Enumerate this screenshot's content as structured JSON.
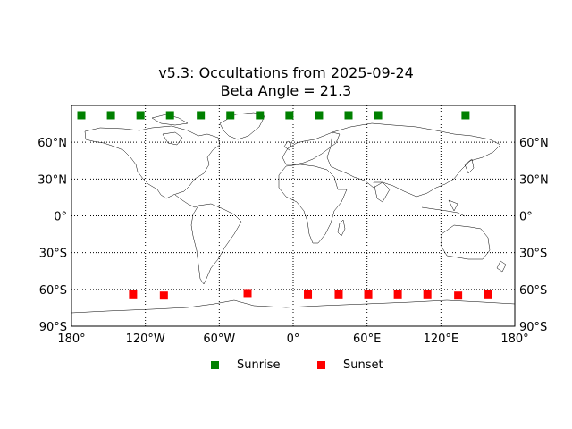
{
  "title": {
    "line1": "v5.3: Occultations from 2025-09-24",
    "line2": "Beta Angle = 21.3"
  },
  "colors": {
    "sunrise": "#008000",
    "sunset": "#ff0000"
  },
  "chart_data": {
    "type": "scatter",
    "projection": "equirectangular",
    "xlim": [
      -180,
      180
    ],
    "ylim": [
      -90,
      90
    ],
    "grid": true,
    "x_ticks": [
      {
        "value": -180,
        "label": "180°"
      },
      {
        "value": -120,
        "label": "120°W"
      },
      {
        "value": -60,
        "label": "60°W"
      },
      {
        "value": 0,
        "label": "0°"
      },
      {
        "value": 60,
        "label": "60°E"
      },
      {
        "value": 120,
        "label": "120°E"
      },
      {
        "value": 180,
        "label": "180°"
      }
    ],
    "y_ticks": [
      {
        "value": 60,
        "label": "60°N"
      },
      {
        "value": 30,
        "label": "30°N"
      },
      {
        "value": 0,
        "label": "0°"
      },
      {
        "value": -30,
        "label": "30°S"
      },
      {
        "value": -60,
        "label": "60°S"
      },
      {
        "value": -90,
        "label": "90°S"
      }
    ],
    "legend_position": "bottom-center",
    "series": [
      {
        "name": "Sunrise",
        "color": "#008000",
        "points": [
          {
            "lon": -172,
            "lat": 82
          },
          {
            "lon": -148,
            "lat": 82
          },
          {
            "lon": -124,
            "lat": 82
          },
          {
            "lon": -100,
            "lat": 82
          },
          {
            "lon": -75,
            "lat": 82
          },
          {
            "lon": -51,
            "lat": 82
          },
          {
            "lon": -27,
            "lat": 82
          },
          {
            "lon": -3,
            "lat": 82
          },
          {
            "lon": 21,
            "lat": 82
          },
          {
            "lon": 45,
            "lat": 82
          },
          {
            "lon": 69,
            "lat": 82
          },
          {
            "lon": 140,
            "lat": 82
          }
        ]
      },
      {
        "name": "Sunset",
        "color": "#ff0000",
        "points": [
          {
            "lon": -130,
            "lat": -64
          },
          {
            "lon": -105,
            "lat": -65
          },
          {
            "lon": -37,
            "lat": -63
          },
          {
            "lon": 12,
            "lat": -64
          },
          {
            "lon": 37,
            "lat": -64
          },
          {
            "lon": 61,
            "lat": -64
          },
          {
            "lon": 85,
            "lat": -64
          },
          {
            "lon": 109,
            "lat": -64
          },
          {
            "lon": 134,
            "lat": -65
          },
          {
            "lon": 158,
            "lat": -64
          }
        ]
      }
    ]
  }
}
